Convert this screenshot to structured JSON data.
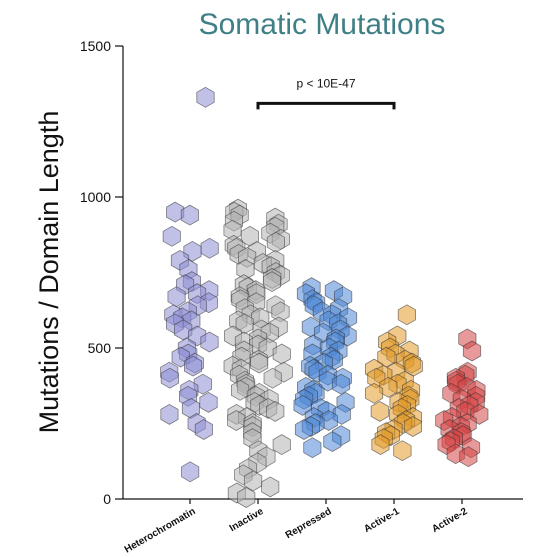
{
  "chart_data": {
    "type": "scatter",
    "title": "Somatic Mutations",
    "xlabel": "",
    "ylabel": "Mutations / Domain Length",
    "ylim": [
      0,
      1500
    ],
    "yticks": [
      0,
      500,
      1000,
      1500
    ],
    "grid": false,
    "categories": [
      "Heterochromatin",
      "Inactive",
      "Repressed",
      "Active-1",
      "Active-2"
    ],
    "annotation": {
      "text": "p < 10E-47",
      "from_category": "Inactive",
      "to_category": "Active-1",
      "y": 1310
    },
    "series": [
      {
        "category": "Heterochromatin",
        "color": "#8e8ed6",
        "values": [
          1330,
          950,
          940,
          870,
          830,
          820,
          790,
          760,
          720,
          710,
          690,
          680,
          670,
          650,
          640,
          620,
          610,
          600,
          590,
          580,
          560,
          540,
          520,
          500,
          480,
          470,
          450,
          440,
          420,
          400,
          380,
          360,
          340,
          320,
          300,
          280,
          250,
          230,
          90
        ]
      },
      {
        "category": "Inactive",
        "color": "#b3b3b3",
        "values": [
          960,
          950,
          940,
          930,
          920,
          910,
          900,
          890,
          880,
          870,
          860,
          850,
          840,
          830,
          820,
          810,
          800,
          790,
          780,
          770,
          760,
          750,
          740,
          730,
          720,
          710,
          700,
          690,
          680,
          670,
          660,
          650,
          640,
          630,
          620,
          610,
          600,
          590,
          580,
          570,
          560,
          550,
          540,
          530,
          520,
          510,
          500,
          490,
          480,
          470,
          460,
          450,
          440,
          430,
          420,
          410,
          400,
          390,
          380,
          370,
          360,
          350,
          340,
          330,
          320,
          310,
          300,
          290,
          280,
          270,
          260,
          250,
          240,
          220,
          200,
          180,
          160,
          140,
          120,
          100,
          80,
          60,
          40,
          20,
          5
        ]
      },
      {
        "category": "Repressed",
        "color": "#4f86d6",
        "values": [
          700,
          690,
          680,
          670,
          660,
          650,
          640,
          630,
          620,
          610,
          600,
          590,
          580,
          570,
          560,
          550,
          540,
          530,
          520,
          510,
          500,
          490,
          480,
          470,
          460,
          450,
          440,
          430,
          420,
          410,
          400,
          390,
          380,
          370,
          360,
          350,
          340,
          330,
          320,
          310,
          300,
          290,
          280,
          270,
          260,
          250,
          240,
          230,
          210,
          190,
          170
        ]
      },
      {
        "category": "Active-1",
        "color": "#e29a2a",
        "values": [
          610,
          540,
          520,
          500,
          490,
          480,
          470,
          460,
          450,
          440,
          430,
          420,
          410,
          400,
          390,
          380,
          370,
          360,
          350,
          340,
          330,
          320,
          310,
          300,
          290,
          280,
          270,
          260,
          250,
          240,
          230,
          220,
          210,
          200,
          180,
          160
        ]
      },
      {
        "category": "Active-2",
        "color": "#d64545",
        "values": [
          530,
          490,
          420,
          410,
          400,
          390,
          380,
          370,
          360,
          350,
          340,
          330,
          320,
          310,
          300,
          290,
          280,
          270,
          260,
          250,
          240,
          230,
          220,
          210,
          200,
          190,
          180,
          170,
          150,
          140
        ]
      }
    ]
  }
}
